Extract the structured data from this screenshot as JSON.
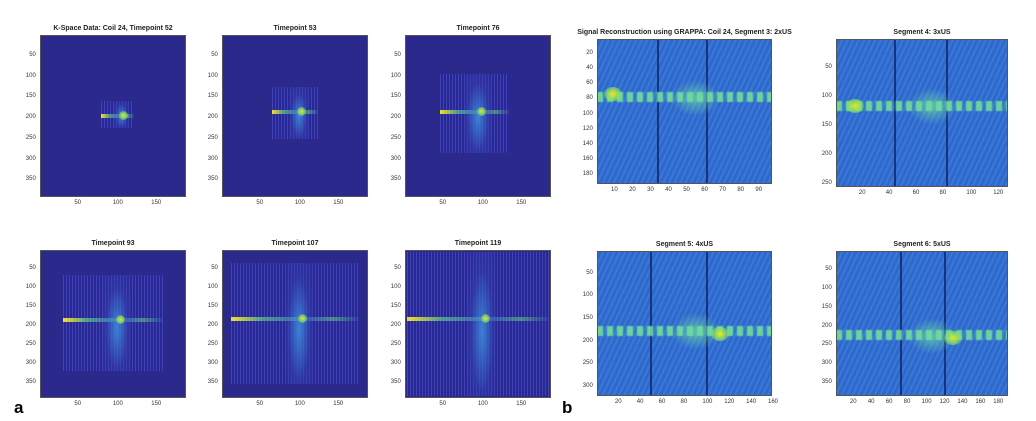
{
  "labels": {
    "a": "a",
    "b": "b"
  },
  "colors": {
    "bg_dark": "#2b2a8c",
    "bg_blue": "#2f6fd6",
    "hot_yellow": "#f6e020",
    "warm": "#7fe07a"
  },
  "chart_data": [
    {
      "type": "heatmap",
      "title": "K-Space Data: Coil 24, Timepoint 52",
      "xticks": [
        "50",
        "100",
        "150"
      ],
      "yticks": [
        "50",
        "100",
        "150",
        "200",
        "250",
        "300",
        "350"
      ],
      "xlim": [
        0,
        190
      ],
      "ylim": [
        0,
        390
      ],
      "data_region": {
        "x": [
          80,
          122
        ],
        "y": [
          160,
          225
        ]
      }
    },
    {
      "type": "heatmap",
      "title": "Timepoint 53",
      "xticks": [
        "50",
        "100",
        "150"
      ],
      "yticks": [
        "50",
        "100",
        "150",
        "200",
        "250",
        "300",
        "350"
      ],
      "xlim": [
        0,
        190
      ],
      "ylim": [
        0,
        390
      ],
      "data_region": {
        "x": [
          65,
          125
        ],
        "y": [
          125,
          250
        ]
      }
    },
    {
      "type": "heatmap",
      "title": "Timepoint 76",
      "xticks": [
        "50",
        "100",
        "150"
      ],
      "yticks": [
        "50",
        "100",
        "150",
        "200",
        "250",
        "300",
        "350"
      ],
      "xlim": [
        0,
        190
      ],
      "ylim": [
        0,
        390
      ],
      "data_region": {
        "x": [
          45,
          135
        ],
        "y": [
          95,
          285
        ]
      }
    },
    {
      "type": "heatmap",
      "title": "Timepoint 93",
      "xticks": [
        "50",
        "100",
        "150"
      ],
      "yticks": [
        "50",
        "100",
        "150",
        "200",
        "250",
        "300",
        "350"
      ],
      "xlim": [
        0,
        190
      ],
      "ylim": [
        0,
        390
      ],
      "data_region": {
        "x": [
          30,
          160
        ],
        "y": [
          65,
          320
        ]
      }
    },
    {
      "type": "heatmap",
      "title": "Timepoint 107",
      "xticks": [
        "50",
        "100",
        "150"
      ],
      "yticks": [
        "50",
        "100",
        "150",
        "200",
        "250",
        "300",
        "350"
      ],
      "xlim": [
        0,
        190
      ],
      "ylim": [
        0,
        390
      ],
      "data_region": {
        "x": [
          12,
          178
        ],
        "y": [
          35,
          352
        ]
      }
    },
    {
      "type": "heatmap",
      "title": "Timepoint 119",
      "xticks": [
        "50",
        "100",
        "150"
      ],
      "yticks": [
        "50",
        "100",
        "150",
        "200",
        "250",
        "300",
        "350"
      ],
      "xlim": [
        0,
        190
      ],
      "ylim": [
        0,
        390
      ],
      "data_region": {
        "x": [
          2,
          188
        ],
        "y": [
          5,
          385
        ]
      }
    },
    {
      "type": "heatmap",
      "title": "Signal Reconstruction using GRAPPA: Coil 24, Segment 3: 2xUS",
      "xticks": [
        "10",
        "20",
        "30",
        "40",
        "50",
        "60",
        "70",
        "80",
        "90"
      ],
      "yticks": [
        "20",
        "40",
        "60",
        "80",
        "100",
        "120",
        "140",
        "160",
        "180"
      ],
      "xlim": [
        0,
        97
      ],
      "ylim": [
        0,
        192
      ]
    },
    {
      "type": "heatmap",
      "title": "Segment 4: 3xUS",
      "xticks": [
        "20",
        "40",
        "60",
        "80",
        "100",
        "120"
      ],
      "yticks": [
        "50",
        "100",
        "150",
        "200",
        "250"
      ],
      "xlim": [
        0,
        128
      ],
      "ylim": [
        0,
        256
      ]
    },
    {
      "type": "heatmap",
      "title": "Segment 5: 4xUS",
      "xticks": [
        "20",
        "40",
        "60",
        "80",
        "100",
        "120",
        "140",
        "160"
      ],
      "yticks": [
        "50",
        "100",
        "150",
        "200",
        "250",
        "300"
      ],
      "xlim": [
        0,
        160
      ],
      "ylim": [
        0,
        320
      ]
    },
    {
      "type": "heatmap",
      "title": "Segment 6: 5xUS",
      "xticks": [
        "20",
        "40",
        "60",
        "80",
        "100",
        "120",
        "140",
        "160",
        "180"
      ],
      "yticks": [
        "50",
        "100",
        "150",
        "200",
        "250",
        "300",
        "350"
      ],
      "xlim": [
        0,
        192
      ],
      "ylim": [
        0,
        384
      ]
    }
  ]
}
